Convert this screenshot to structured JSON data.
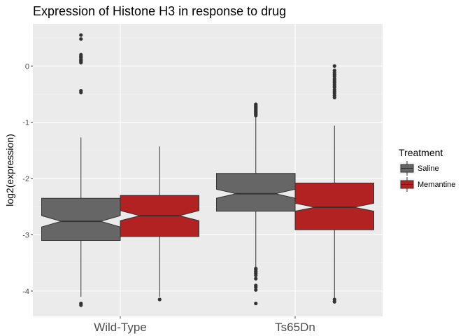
{
  "chart_data": {
    "type": "box",
    "title": "Expression of Histone H3 in response to drug",
    "xlabel": "",
    "ylabel": "log2(expression)",
    "ylim": [
      -4.45,
      0.75
    ],
    "y_ticks": [
      {
        "value": 0,
        "label": "0"
      },
      {
        "value": -1,
        "label": "-1"
      },
      {
        "value": -2,
        "label": "-2"
      },
      {
        "value": -3,
        "label": "-3"
      },
      {
        "value": -4,
        "label": "-4"
      }
    ],
    "categories": [
      "Wild-Type",
      "Ts65Dn"
    ],
    "legend": {
      "title": "Treatment",
      "position": "right"
    },
    "grid": true,
    "notched": true,
    "series": [
      {
        "name": "Saline",
        "color": "#666666",
        "boxes": [
          {
            "category": "Wild-Type",
            "q1": -3.1,
            "median": -2.76,
            "q3": -2.35,
            "whisker_low": -4.1,
            "whisker_high": -1.27,
            "notch_low": -2.86,
            "notch_high": -2.66,
            "outliers": [
              0.55,
              0.48,
              0.2,
              0.17,
              0.15,
              0.12,
              0.1,
              0.08,
              0.06,
              -0.44,
              -0.47,
              -4.22,
              -4.25
            ]
          },
          {
            "category": "Ts65Dn",
            "q1": -2.58,
            "median": -2.27,
            "q3": -1.91,
            "whisker_low": -3.58,
            "whisker_high": -0.85,
            "notch_low": -2.35,
            "notch_high": -2.19,
            "outliers": [
              -0.68,
              -0.7,
              -0.72,
              -0.74,
              -0.76,
              -0.78,
              -0.8,
              -0.82,
              -0.84,
              -0.86,
              -0.88,
              -3.6,
              -3.62,
              -3.65,
              -3.68,
              -3.72,
              -3.78,
              -3.9,
              -3.93,
              -3.98,
              -4.22
            ]
          }
        ]
      },
      {
        "name": "Memantine",
        "color": "#b22222",
        "boxes": [
          {
            "category": "Wild-Type",
            "q1": -3.03,
            "median": -2.66,
            "q3": -2.3,
            "whisker_low": -4.1,
            "whisker_high": -1.43,
            "notch_low": -2.75,
            "notch_high": -2.57,
            "outliers": [
              -4.15
            ]
          },
          {
            "category": "Ts65Dn",
            "q1": -2.91,
            "median": -2.51,
            "q3": -2.08,
            "whisker_low": -4.12,
            "whisker_high": -1.06,
            "notch_low": -2.58,
            "notch_high": -2.44,
            "outliers": [
              0.0,
              -0.08,
              -0.12,
              -0.15,
              -0.18,
              -0.22,
              -0.25,
              -0.28,
              -0.3,
              -0.33,
              -0.36,
              -0.38,
              -0.42,
              -0.45,
              -0.48,
              -0.52,
              -0.56,
              -4.15,
              -4.19
            ]
          }
        ]
      }
    ]
  }
}
